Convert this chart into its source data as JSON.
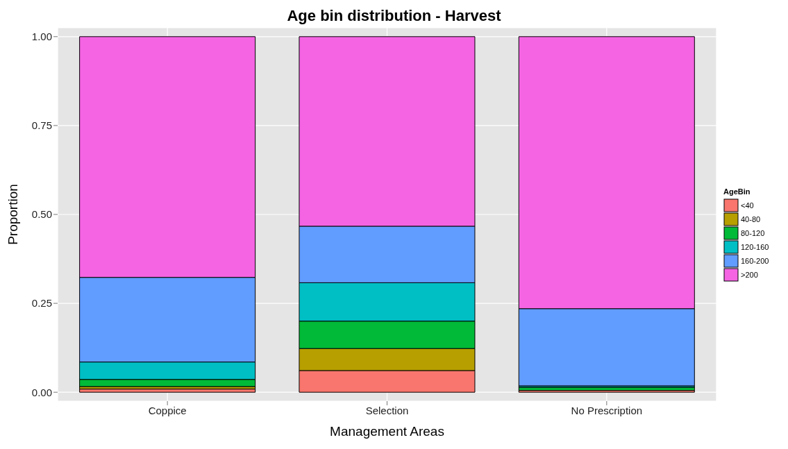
{
  "chart_data": {
    "type": "bar",
    "stacked": true,
    "title": "Age bin distribution - Harvest",
    "xlabel": "Management Areas",
    "ylabel": "Proportion",
    "legend_title": "AgeBin",
    "legend": "right",
    "grid": true,
    "categories": [
      "Coppice",
      "Selection",
      "No Prescription"
    ],
    "ylim": [
      -0.025,
      1.025
    ],
    "yticks": [
      {
        "value": 0,
        "label": "0.00"
      },
      {
        "value": 0.25,
        "label": "0.25"
      },
      {
        "value": 0.5,
        "label": "0.50"
      },
      {
        "value": 0.75,
        "label": "0.75"
      },
      {
        "value": 1,
        "label": "1.00"
      }
    ],
    "series": [
      {
        "name": "<40",
        "color": "#f8766d",
        "values": [
          0.009,
          0.061,
          0.005
        ]
      },
      {
        "name": "40-80",
        "color": "#b79f00",
        "values": [
          0.007,
          0.062,
          null
        ]
      },
      {
        "name": "80-120",
        "color": "#00ba38",
        "values": [
          0.02,
          0.077,
          0.009
        ]
      },
      {
        "name": "120-160",
        "color": "#00bfc4",
        "values": [
          0.049,
          0.108,
          0.004
        ]
      },
      {
        "name": "160-200",
        "color": "#619cff",
        "values": [
          0.238,
          0.159,
          0.217
        ]
      },
      {
        "name": ">200",
        "color": "#f564e3",
        "values": [
          0.677,
          0.533,
          0.765
        ]
      }
    ]
  }
}
